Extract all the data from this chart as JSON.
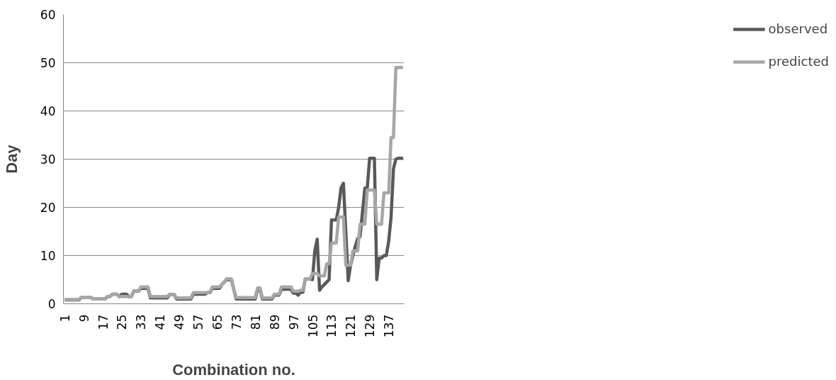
{
  "chart_data": {
    "type": "line",
    "xlabel": "Combination no.",
    "ylabel": "Day",
    "categories": [
      "1",
      null,
      null,
      null,
      null,
      null,
      null,
      null,
      "9",
      null,
      null,
      null,
      null,
      null,
      null,
      null,
      "17",
      null,
      null,
      null,
      null,
      null,
      null,
      null,
      "25",
      null,
      null,
      null,
      null,
      null,
      null,
      null,
      "33",
      null,
      null,
      null,
      null,
      null,
      null,
      null,
      "41",
      null,
      null,
      null,
      null,
      null,
      null,
      null,
      "49",
      null,
      null,
      null,
      null,
      null,
      null,
      null,
      "57",
      null,
      null,
      null,
      null,
      null,
      null,
      null,
      "65",
      null,
      null,
      null,
      null,
      null,
      null,
      null,
      "73",
      null,
      null,
      null,
      null,
      null,
      null,
      null,
      "81",
      null,
      null,
      null,
      null,
      null,
      null,
      null,
      "89",
      null,
      null,
      null,
      null,
      null,
      null,
      null,
      "97",
      null,
      null,
      null,
      null,
      null,
      null,
      null,
      "105",
      null,
      null,
      null,
      null,
      null,
      null,
      null,
      "113",
      null,
      null,
      null,
      null,
      null,
      null,
      null,
      "121",
      null,
      null,
      null,
      null,
      null,
      null,
      null,
      "129",
      null,
      null,
      null,
      null,
      null,
      null,
      null,
      "137",
      null,
      null,
      null,
      null,
      null,
      null
    ],
    "series": [
      {
        "name": "observed",
        "color": "#595959",
        "values": [
          0.8,
          0.8,
          0.8,
          0.8,
          0.8,
          0.8,
          0.8,
          1.3,
          1.3,
          1.3,
          1.3,
          1.3,
          1,
          1,
          1,
          1,
          1,
          1,
          1.5,
          1.5,
          2,
          2,
          2,
          1.5,
          2,
          2,
          2,
          1.5,
          1.5,
          2.6,
          2.6,
          2.6,
          3.2,
          3.2,
          3.2,
          3.2,
          1.2,
          1.2,
          1.2,
          1.2,
          1.2,
          1.2,
          1.2,
          1.2,
          1.9,
          1.9,
          1.9,
          1,
          1,
          1,
          1,
          1,
          1,
          1,
          2,
          2,
          2,
          2,
          2,
          2,
          2.3,
          2.3,
          3.2,
          3.2,
          3.2,
          3.2,
          4,
          4.5,
          5,
          5,
          5,
          3,
          1,
          1,
          1,
          1,
          1,
          1,
          1,
          1,
          1,
          3,
          3,
          1,
          1,
          1,
          1,
          1,
          1.8,
          1.8,
          1.8,
          3,
          3,
          3,
          3,
          3,
          2.2,
          2.2,
          1.8,
          2.4,
          2.4,
          5.2,
          5.2,
          5.2,
          5,
          11,
          13.4,
          2.8,
          3.5,
          4,
          4.5,
          5,
          17.4,
          17.4,
          17.4,
          20,
          24,
          25,
          15,
          4.8,
          8,
          10,
          12,
          13.5,
          14,
          19,
          24,
          24,
          30.2,
          30.2,
          30.2,
          5,
          9.5,
          9.5,
          10,
          10,
          13,
          18,
          28,
          30,
          30.2,
          30.2,
          30.2
        ]
      },
      {
        "name": "predicted",
        "color": "#a6a6a6",
        "values": [
          0.9,
          0.9,
          0.9,
          0.9,
          0.9,
          0.9,
          0.9,
          1.3,
          1.3,
          1.3,
          1.3,
          1.3,
          1,
          1,
          1,
          1,
          1,
          1,
          1.5,
          1.5,
          2,
          2,
          2,
          1.5,
          1.5,
          1.5,
          1.5,
          1.5,
          1.5,
          2.6,
          2.6,
          2.6,
          3.5,
          3.5,
          3.5,
          3.5,
          1.5,
          1.5,
          1.5,
          1.5,
          1.5,
          1.5,
          1.5,
          1.5,
          1.9,
          1.9,
          1.9,
          1.2,
          1.2,
          1.2,
          1.2,
          1.2,
          1.2,
          1.2,
          2.3,
          2.3,
          2.3,
          2.3,
          2.3,
          2.3,
          2.3,
          2.3,
          3.5,
          3.5,
          3.5,
          3.5,
          4,
          4.5,
          5.2,
          5.2,
          5.2,
          3,
          1.3,
          1.3,
          1.3,
          1.3,
          1.3,
          1.3,
          1.3,
          1.3,
          1.3,
          3.3,
          3.3,
          1.2,
          1.2,
          1.2,
          1.2,
          1.2,
          2,
          2,
          2,
          3.5,
          3.5,
          3.5,
          3.5,
          3.5,
          2.6,
          2.6,
          2.6,
          2.8,
          2.8,
          5.2,
          5.2,
          5.2,
          6.3,
          6.3,
          6.3,
          5.8,
          5.8,
          5.8,
          8.3,
          8.3,
          12.6,
          12.6,
          12.6,
          18,
          18,
          18,
          8,
          8,
          8,
          11,
          11,
          11,
          16.5,
          16.5,
          16.5,
          23.6,
          23.6,
          23.6,
          23.6,
          16.5,
          16.5,
          16.5,
          23,
          23,
          23,
          34.5,
          34.5,
          49,
          49,
          49,
          49
        ]
      }
    ],
    "ylim": [
      0,
      60
    ],
    "yticks": [
      0,
      10,
      20,
      30,
      40,
      50,
      60
    ],
    "grid": "y",
    "legend": "right"
  }
}
